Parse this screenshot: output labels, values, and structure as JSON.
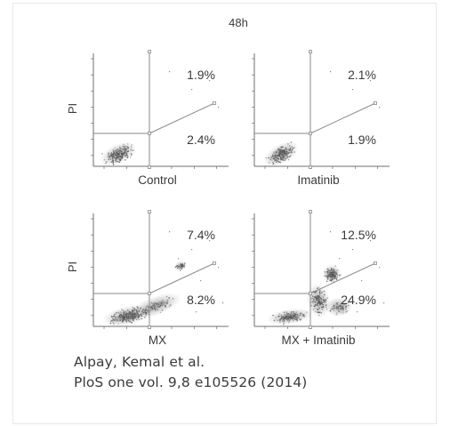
{
  "figure": {
    "title": "48h",
    "y_axis_label": "PI",
    "panels": [
      {
        "name": "Control",
        "upper_right": "1.9%",
        "lower_right": "2.4%"
      },
      {
        "name": "Imatinib",
        "upper_right": "2.1%",
        "lower_right": "1.9%"
      },
      {
        "name": "MX",
        "upper_right": "7.4%",
        "lower_right": "8.2%"
      },
      {
        "name": "MX + Imatinib",
        "upper_right": "12.5%",
        "lower_right": "24.9%"
      }
    ],
    "colors": {
      "axis": "#6f6f6f",
      "dots": "#555555",
      "gate": "#8a8a8a"
    }
  },
  "citation": {
    "line1": "Alpay, Kemal et al.",
    "line2": "PloS one vol. 9,8 e105526 (2014)"
  }
}
